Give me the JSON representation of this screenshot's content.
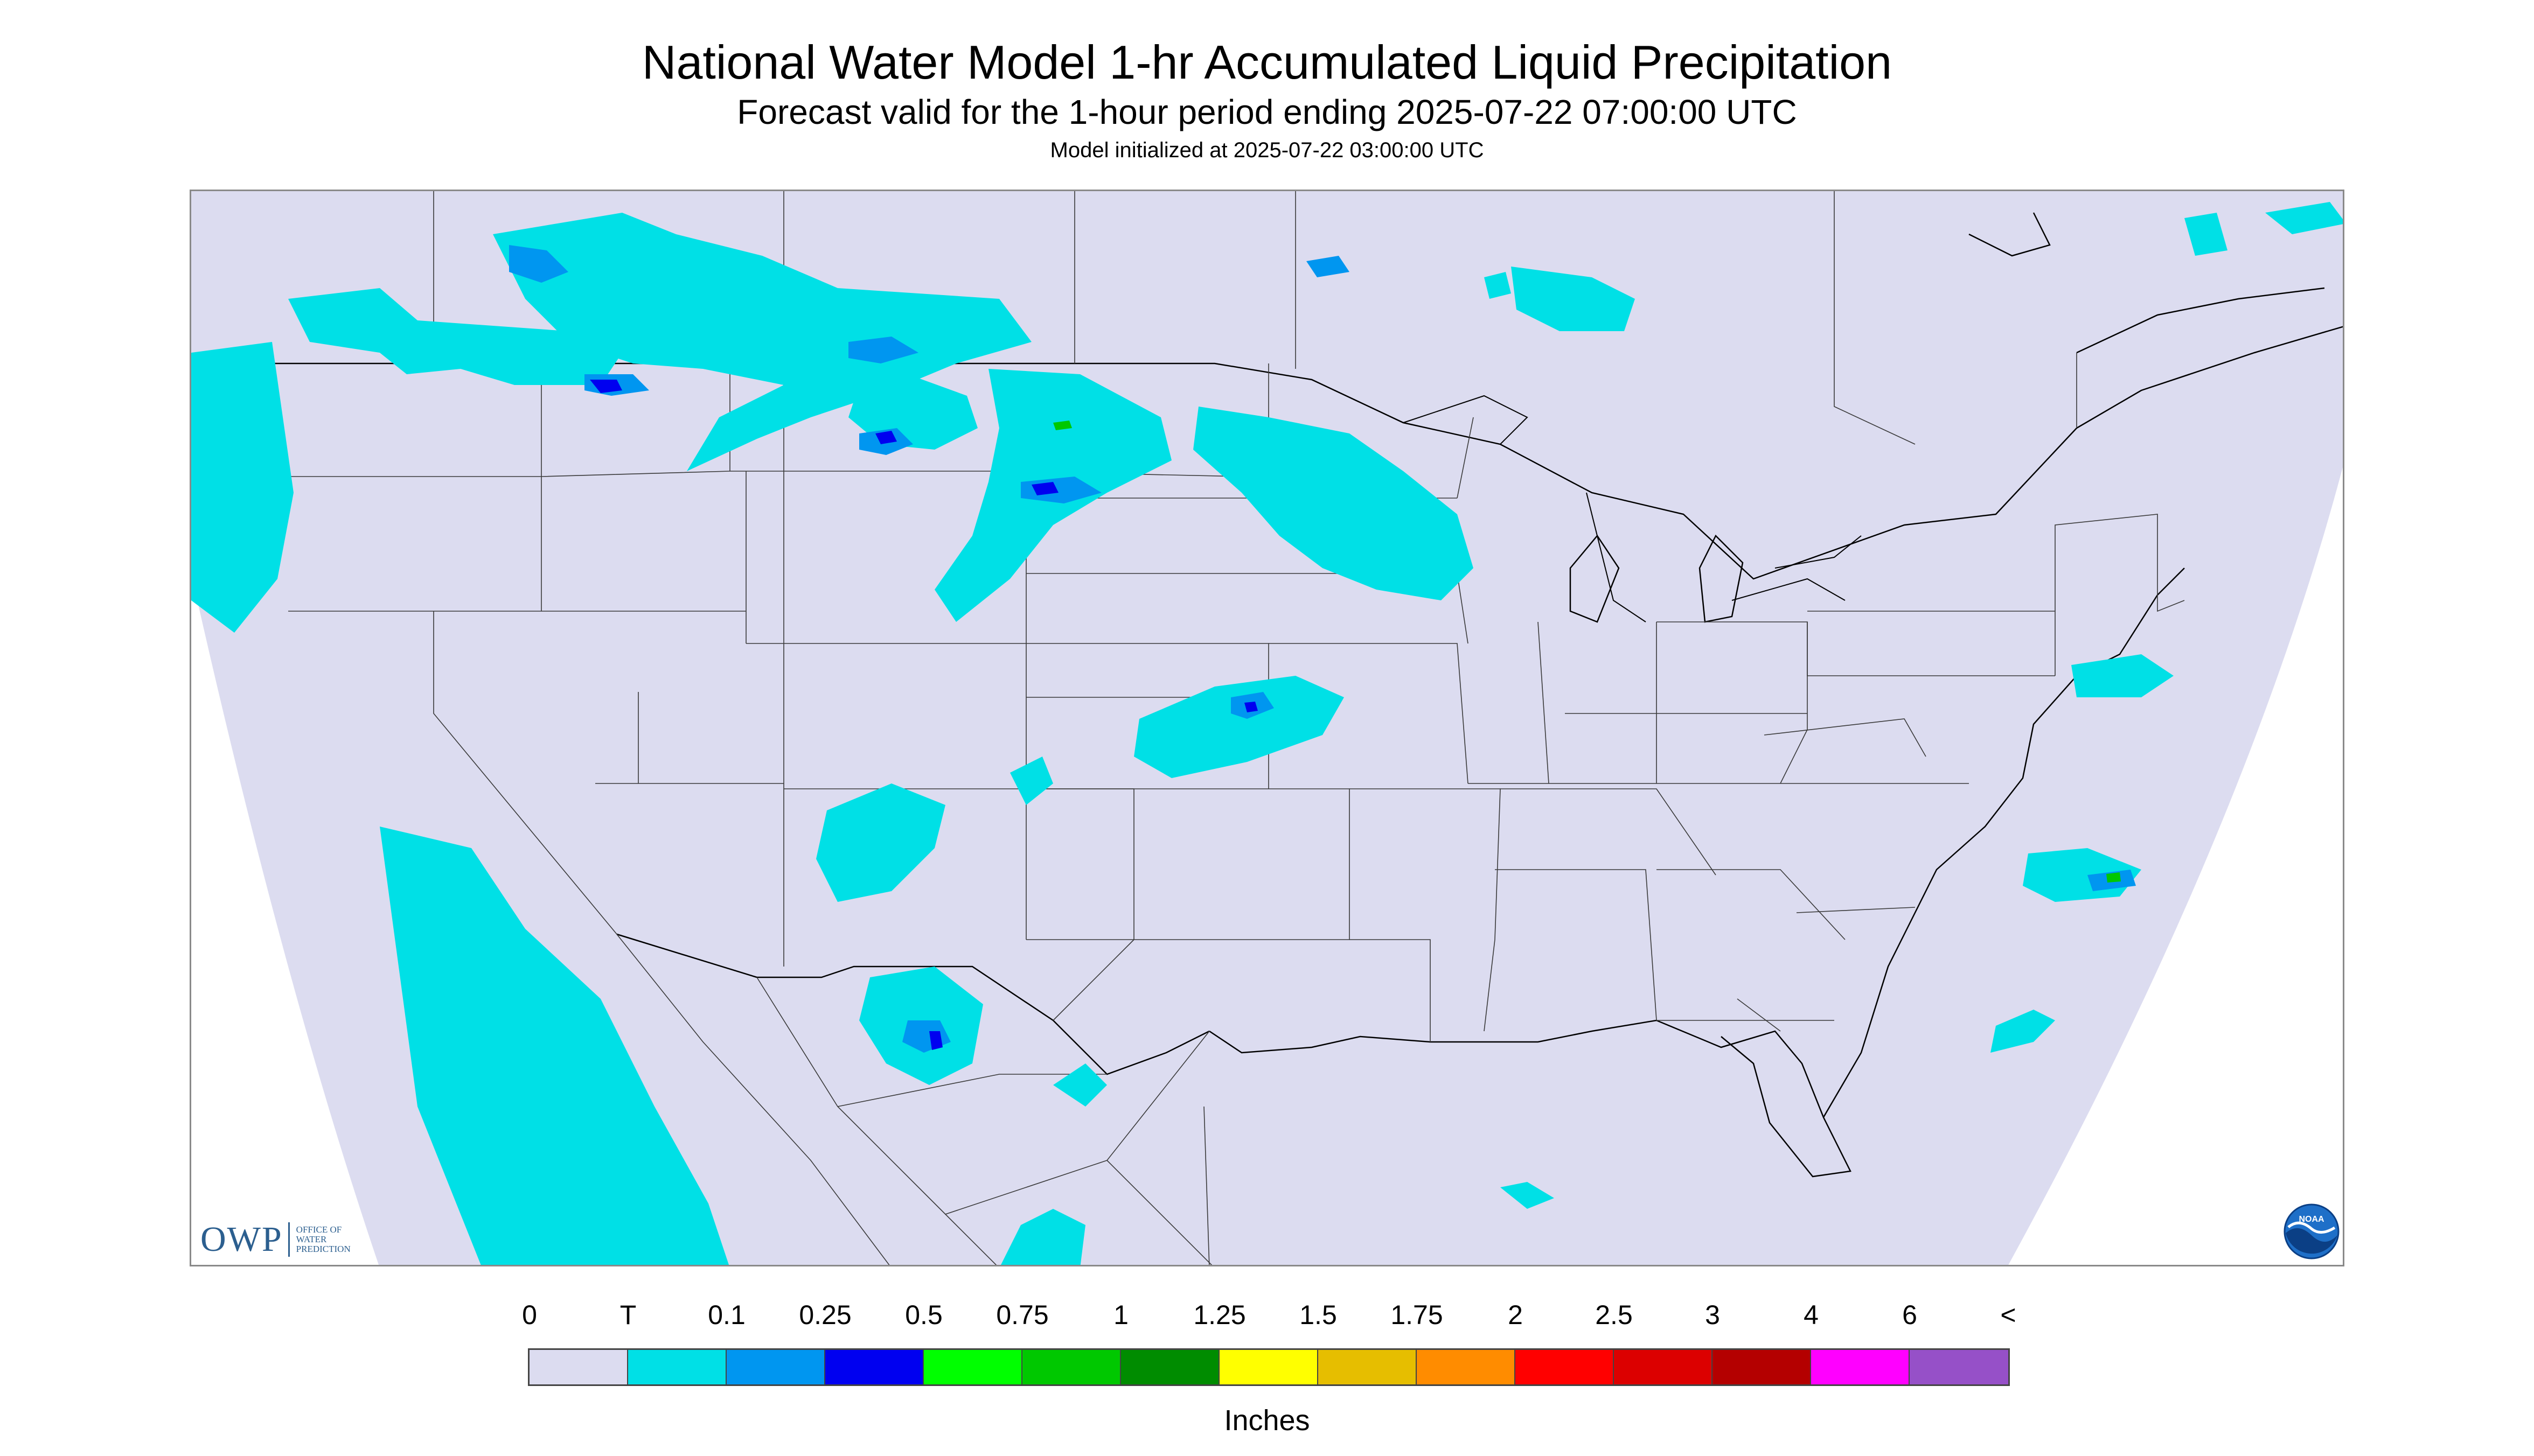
{
  "title": "National Water Model 1-hr Accumulated Liquid Precipitation",
  "subtitle": "Forecast valid for the 1-hour period ending 2025-07-22 07:00:00 UTC",
  "init_text": "Model initialized at 2025-07-22 03:00:00 UTC",
  "logo": {
    "owp_mark": "OWP",
    "owp_text": "OFFICE OF WATER PREDICTION",
    "noaa_text": "NOAA"
  },
  "legend": {
    "labels": [
      "0",
      "T",
      "0.1",
      "0.25",
      "0.5",
      "0.75",
      "1",
      "1.25",
      "1.5",
      "1.75",
      "2",
      "2.5",
      "3",
      "4",
      "6",
      "<"
    ],
    "colors": [
      "#dcdcf0",
      "#00e0e6",
      "#0096f0",
      "#0000f0",
      "#00ff00",
      "#00c800",
      "#008c00",
      "#ffff00",
      "#e6be00",
      "#ff8c00",
      "#ff0000",
      "#dc0000",
      "#b40000",
      "#ff00ff",
      "#9650c8"
    ],
    "units": "Inches"
  },
  "map": {
    "domain_color": "#dcdcf0",
    "precip_colors": {
      "trace": "#00e0e6",
      "light": "#0096f0",
      "moderate": "#0000f0",
      "heavy": "#00c800"
    }
  }
}
